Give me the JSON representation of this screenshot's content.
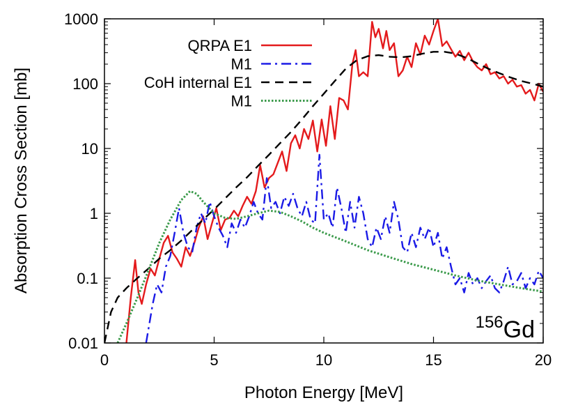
{
  "chart_data": {
    "type": "line",
    "title": "",
    "xlabel": "Photon Energy [MeV]",
    "ylabel": "Absorption Cross Section [mb]",
    "xlim": [
      0,
      20
    ],
    "ylim": [
      0.01,
      1000
    ],
    "yscale": "log",
    "grid": false,
    "legend_position": "top-left",
    "x_ticks": [
      {
        "value": 0,
        "label": "0"
      },
      {
        "value": 5,
        "label": "5"
      },
      {
        "value": 10,
        "label": "10"
      },
      {
        "value": 15,
        "label": "15"
      },
      {
        "value": 20,
        "label": "20"
      }
    ],
    "y_ticks": [
      {
        "value": 0.01,
        "label": "0.01"
      },
      {
        "value": 0.1,
        "label": "0.1"
      },
      {
        "value": 1,
        "label": "1"
      },
      {
        "value": 10,
        "label": "10"
      },
      {
        "value": 100,
        "label": "100"
      },
      {
        "value": 1000,
        "label": "1000"
      }
    ],
    "annotation": {
      "superscript": "156",
      "text": "Gd"
    },
    "series": [
      {
        "name": "QRPA E1",
        "color": "#e41a1c",
        "dash": "solid",
        "points": [
          [
            1.0,
            0.01
          ],
          [
            1.2,
            0.05
          ],
          [
            1.4,
            0.19
          ],
          [
            1.55,
            0.06
          ],
          [
            1.7,
            0.04
          ],
          [
            1.9,
            0.08
          ],
          [
            2.1,
            0.14
          ],
          [
            2.3,
            0.11
          ],
          [
            2.5,
            0.2
          ],
          [
            2.7,
            0.35
          ],
          [
            2.9,
            0.45
          ],
          [
            3.1,
            0.25
          ],
          [
            3.3,
            0.2
          ],
          [
            3.5,
            0.15
          ],
          [
            3.7,
            0.3
          ],
          [
            3.9,
            0.22
          ],
          [
            4.1,
            0.35
          ],
          [
            4.3,
            0.6
          ],
          [
            4.5,
            0.9
          ],
          [
            4.7,
            0.4
          ],
          [
            4.9,
            0.7
          ],
          [
            5.1,
            1.2
          ],
          [
            5.3,
            0.55
          ],
          [
            5.5,
            0.8
          ],
          [
            5.7,
            0.85
          ],
          [
            5.9,
            1.1
          ],
          [
            6.1,
            0.9
          ],
          [
            6.3,
            1.3
          ],
          [
            6.5,
            1.8
          ],
          [
            6.7,
            1.4
          ],
          [
            6.9,
            2.2
          ],
          [
            7.1,
            5.5
          ],
          [
            7.3,
            2.5
          ],
          [
            7.5,
            3.5
          ],
          [
            7.7,
            4.0
          ],
          [
            7.9,
            6.0
          ],
          [
            8.1,
            9.0
          ],
          [
            8.3,
            4.5
          ],
          [
            8.5,
            12.0
          ],
          [
            8.7,
            16.0
          ],
          [
            8.9,
            10.0
          ],
          [
            9.1,
            20.0
          ],
          [
            9.3,
            14.0
          ],
          [
            9.5,
            27.0
          ],
          [
            9.7,
            9.0
          ],
          [
            9.9,
            28.0
          ],
          [
            10.1,
            11.0
          ],
          [
            10.3,
            45.0
          ],
          [
            10.5,
            14.0
          ],
          [
            10.7,
            60.0
          ],
          [
            10.9,
            55.0
          ],
          [
            11.1,
            40.0
          ],
          [
            11.3,
            200.0
          ],
          [
            11.45,
            330.0
          ],
          [
            11.6,
            130.0
          ],
          [
            11.8,
            150.0
          ],
          [
            12.0,
            130.0
          ],
          [
            12.2,
            900.0
          ],
          [
            12.35,
            520.0
          ],
          [
            12.5,
            700.0
          ],
          [
            12.7,
            350.0
          ],
          [
            12.85,
            650.0
          ],
          [
            13.0,
            330.0
          ],
          [
            13.2,
            420.0
          ],
          [
            13.4,
            130.0
          ],
          [
            13.6,
            160.0
          ],
          [
            13.8,
            260.0
          ],
          [
            14.0,
            180.0
          ],
          [
            14.2,
            420.0
          ],
          [
            14.4,
            280.0
          ],
          [
            14.6,
            550.0
          ],
          [
            14.8,
            400.0
          ],
          [
            15.0,
            650.0
          ],
          [
            15.2,
            1000.0
          ],
          [
            15.4,
            380.0
          ],
          [
            15.6,
            450.0
          ],
          [
            15.8,
            340.0
          ],
          [
            16.0,
            260.0
          ],
          [
            16.2,
            320.0
          ],
          [
            16.4,
            230.0
          ],
          [
            16.6,
            300.0
          ],
          [
            16.8,
            220.0
          ],
          [
            17.0,
            180.0
          ],
          [
            17.2,
            160.0
          ],
          [
            17.4,
            200.0
          ],
          [
            17.6,
            140.0
          ],
          [
            17.8,
            150.0
          ],
          [
            18.0,
            120.0
          ],
          [
            18.2,
            130.0
          ],
          [
            18.4,
            100.0
          ],
          [
            18.6,
            115.0
          ],
          [
            18.8,
            90.0
          ],
          [
            19.0,
            95.0
          ],
          [
            19.2,
            70.0
          ],
          [
            19.4,
            80.0
          ],
          [
            19.6,
            55.0
          ],
          [
            19.8,
            100.0
          ],
          [
            20.0,
            75.0
          ]
        ]
      },
      {
        "name": "M1",
        "color": "#1a1ae6",
        "dash": "dashdot",
        "points": [
          [
            1.9,
            0.01
          ],
          [
            2.2,
            0.04
          ],
          [
            2.4,
            0.08
          ],
          [
            2.6,
            0.06
          ],
          [
            2.8,
            0.15
          ],
          [
            3.0,
            0.22
          ],
          [
            3.2,
            0.5
          ],
          [
            3.4,
            1.2
          ],
          [
            3.6,
            0.5
          ],
          [
            3.8,
            0.3
          ],
          [
            4.0,
            0.25
          ],
          [
            4.2,
            0.6
          ],
          [
            4.4,
            1.0
          ],
          [
            4.6,
            0.7
          ],
          [
            4.8,
            1.5
          ],
          [
            5.0,
            0.9
          ],
          [
            5.2,
            0.6
          ],
          [
            5.4,
            0.45
          ],
          [
            5.6,
            0.3
          ],
          [
            5.8,
            0.7
          ],
          [
            6.0,
            0.5
          ],
          [
            6.2,
            0.8
          ],
          [
            6.4,
            0.6
          ],
          [
            6.6,
            0.9
          ],
          [
            6.8,
            1.5
          ],
          [
            7.0,
            1.0
          ],
          [
            7.2,
            0.8
          ],
          [
            7.4,
            3.5
          ],
          [
            7.6,
            1.2
          ],
          [
            7.8,
            1.5
          ],
          [
            8.0,
            1.0
          ],
          [
            8.2,
            1.8
          ],
          [
            8.4,
            1.3
          ],
          [
            8.6,
            2.0
          ],
          [
            8.8,
            1.2
          ],
          [
            9.0,
            0.9
          ],
          [
            9.2,
            1.5
          ],
          [
            9.4,
            0.8
          ],
          [
            9.6,
            0.7
          ],
          [
            9.8,
            8.0
          ],
          [
            10.0,
            0.8
          ],
          [
            10.2,
            1.0
          ],
          [
            10.4,
            0.6
          ],
          [
            10.6,
            2.5
          ],
          [
            10.8,
            1.2
          ],
          [
            11.0,
            0.5
          ],
          [
            11.2,
            1.5
          ],
          [
            11.4,
            0.6
          ],
          [
            11.6,
            1.8
          ],
          [
            11.8,
            1.0
          ],
          [
            12.0,
            0.4
          ],
          [
            12.2,
            0.3
          ],
          [
            12.4,
            0.6
          ],
          [
            12.6,
            0.4
          ],
          [
            12.8,
            0.9
          ],
          [
            13.0,
            0.5
          ],
          [
            13.2,
            1.5
          ],
          [
            13.4,
            0.8
          ],
          [
            13.6,
            0.3
          ],
          [
            13.8,
            0.25
          ],
          [
            14.0,
            0.5
          ],
          [
            14.2,
            0.3
          ],
          [
            14.4,
            0.6
          ],
          [
            14.6,
            0.4
          ],
          [
            14.8,
            0.6
          ],
          [
            15.0,
            0.3
          ],
          [
            15.2,
            0.5
          ],
          [
            15.4,
            0.2
          ],
          [
            15.6,
            0.3
          ],
          [
            15.8,
            0.15
          ],
          [
            16.0,
            0.08
          ],
          [
            16.2,
            0.1
          ],
          [
            16.4,
            0.06
          ],
          [
            16.6,
            0.12
          ],
          [
            16.8,
            0.08
          ],
          [
            17.0,
            0.1
          ],
          [
            17.2,
            0.07
          ],
          [
            17.4,
            0.09
          ],
          [
            17.6,
            0.11
          ],
          [
            17.8,
            0.07
          ],
          [
            18.0,
            0.06
          ],
          [
            18.2,
            0.09
          ],
          [
            18.4,
            0.15
          ],
          [
            18.6,
            0.08
          ],
          [
            18.8,
            0.09
          ],
          [
            19.0,
            0.12
          ],
          [
            19.2,
            0.07
          ],
          [
            19.4,
            0.1
          ],
          [
            19.6,
            0.08
          ],
          [
            19.8,
            0.13
          ],
          [
            20.0,
            0.1
          ]
        ]
      },
      {
        "name": "CoH internal E1",
        "color": "#000000",
        "dash": "dashed",
        "points": [
          [
            0.0,
            0.01
          ],
          [
            0.3,
            0.03
          ],
          [
            0.6,
            0.05
          ],
          [
            1.0,
            0.07
          ],
          [
            1.5,
            0.1
          ],
          [
            2.0,
            0.14
          ],
          [
            2.5,
            0.2
          ],
          [
            3.0,
            0.27
          ],
          [
            3.5,
            0.38
          ],
          [
            4.0,
            0.55
          ],
          [
            4.5,
            0.8
          ],
          [
            5.0,
            1.15
          ],
          [
            5.5,
            1.7
          ],
          [
            6.0,
            2.5
          ],
          [
            6.5,
            3.6
          ],
          [
            7.0,
            5.4
          ],
          [
            7.5,
            8.0
          ],
          [
            8.0,
            12.0
          ],
          [
            8.5,
            18.0
          ],
          [
            9.0,
            28.0
          ],
          [
            9.5,
            45.0
          ],
          [
            10.0,
            70.0
          ],
          [
            10.5,
            110.0
          ],
          [
            11.0,
            170.0
          ],
          [
            11.5,
            230.0
          ],
          [
            12.0,
            265.0
          ],
          [
            12.5,
            275.0
          ],
          [
            13.0,
            260.0
          ],
          [
            13.5,
            255.0
          ],
          [
            14.0,
            265.0
          ],
          [
            14.5,
            290.0
          ],
          [
            15.0,
            310.0
          ],
          [
            15.5,
            310.0
          ],
          [
            16.0,
            290.0
          ],
          [
            16.5,
            250.0
          ],
          [
            17.0,
            205.0
          ],
          [
            17.5,
            170.0
          ],
          [
            18.0,
            145.0
          ],
          [
            18.5,
            125.0
          ],
          [
            19.0,
            110.0
          ],
          [
            19.5,
            100.0
          ],
          [
            20.0,
            90.0
          ]
        ]
      },
      {
        "name": "M1",
        "color": "#3a9a4a",
        "dash": "dotted",
        "points": [
          [
            0.6,
            0.01
          ],
          [
            1.0,
            0.02
          ],
          [
            1.5,
            0.05
          ],
          [
            2.0,
            0.13
          ],
          [
            2.5,
            0.35
          ],
          [
            3.0,
            0.8
          ],
          [
            3.5,
            1.6
          ],
          [
            3.9,
            2.2
          ],
          [
            4.2,
            2.0
          ],
          [
            4.5,
            1.5
          ],
          [
            5.0,
            1.0
          ],
          [
            5.5,
            0.85
          ],
          [
            6.0,
            0.82
          ],
          [
            6.5,
            0.9
          ],
          [
            7.0,
            1.0
          ],
          [
            7.5,
            1.1
          ],
          [
            8.0,
            1.05
          ],
          [
            8.5,
            0.9
          ],
          [
            9.0,
            0.75
          ],
          [
            9.5,
            0.6
          ],
          [
            10.0,
            0.5
          ],
          [
            11.0,
            0.37
          ],
          [
            12.0,
            0.27
          ],
          [
            13.0,
            0.21
          ],
          [
            14.0,
            0.165
          ],
          [
            15.0,
            0.135
          ],
          [
            16.0,
            0.11
          ],
          [
            17.0,
            0.092
          ],
          [
            18.0,
            0.08
          ],
          [
            19.0,
            0.07
          ],
          [
            20.0,
            0.062
          ]
        ]
      }
    ]
  }
}
